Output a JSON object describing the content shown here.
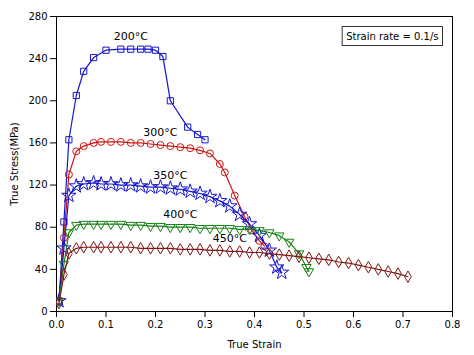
{
  "chart_data": {
    "type": "line",
    "xlabel": "True Strain",
    "ylabel": "True Stress(MPa)",
    "xlim": [
      0,
      0.8
    ],
    "ylim": [
      0,
      280
    ],
    "xticks": [
      {
        "value": 0,
        "label": "0.0"
      },
      0.1,
      0.2,
      0.3,
      0.4,
      0.5,
      0.6,
      0.7,
      0.8
    ],
    "yticks": [
      0,
      40,
      80,
      120,
      160,
      200,
      240,
      280
    ],
    "annotation": "Strain rate = 0.1/s",
    "grid": false,
    "series": [
      {
        "name": "200°C",
        "color": "#1515cc",
        "marker": "square",
        "x": [
          0.005,
          0.015,
          0.025,
          0.04,
          0.055,
          0.075,
          0.1,
          0.13,
          0.15,
          0.17,
          0.185,
          0.2,
          0.215,
          0.23,
          0.265,
          0.285,
          0.3
        ],
        "values": [
          10,
          85,
          163,
          205,
          228,
          241,
          248,
          249,
          249,
          249,
          249,
          248,
          242,
          200,
          175,
          168,
          163
        ]
      },
      {
        "name": "300°C",
        "color": "#cc1515",
        "marker": "circle",
        "x": [
          0.005,
          0.015,
          0.025,
          0.04,
          0.055,
          0.075,
          0.09,
          0.11,
          0.13,
          0.15,
          0.17,
          0.19,
          0.21,
          0.23,
          0.25,
          0.27,
          0.29,
          0.31,
          0.33,
          0.34,
          0.36,
          0.38,
          0.395,
          0.41,
          0.42
        ],
        "values": [
          10,
          70,
          130,
          152,
          157,
          160,
          161,
          161,
          161,
          160,
          160,
          159,
          158,
          157,
          156,
          155,
          153,
          150,
          140,
          132,
          110,
          90,
          77,
          67,
          62
        ]
      },
      {
        "name": "350°C",
        "color": "#1515cc",
        "marker": "star",
        "x": [
          0.005,
          0.015,
          0.025,
          0.04,
          0.055,
          0.075,
          0.09,
          0.11,
          0.13,
          0.15,
          0.17,
          0.19,
          0.21,
          0.23,
          0.25,
          0.27,
          0.29,
          0.31,
          0.33,
          0.35,
          0.37,
          0.39,
          0.41,
          0.43,
          0.445,
          0.455
        ],
        "values": [
          10,
          60,
          110,
          119,
          121,
          122,
          121,
          121,
          120,
          120,
          119,
          118,
          118,
          117,
          116,
          114,
          112,
          109,
          105,
          100,
          92,
          83,
          72,
          58,
          42,
          37
        ]
      },
      {
        "name": "400°C",
        "color": "#158015",
        "marker": "triangle-down",
        "x": [
          0.005,
          0.015,
          0.025,
          0.04,
          0.055,
          0.075,
          0.09,
          0.11,
          0.13,
          0.15,
          0.17,
          0.19,
          0.21,
          0.23,
          0.25,
          0.27,
          0.29,
          0.31,
          0.33,
          0.35,
          0.37,
          0.39,
          0.41,
          0.43,
          0.45,
          0.47,
          0.49,
          0.505,
          0.51
        ],
        "values": [
          10,
          45,
          75,
          82,
          83,
          83,
          83,
          83,
          83,
          82,
          82,
          81,
          81,
          80,
          80,
          80,
          79,
          79,
          79,
          79,
          78,
          78,
          77,
          75,
          72,
          66,
          55,
          42,
          38
        ]
      },
      {
        "name": "450°C",
        "color": "#801515",
        "marker": "diamond",
        "x": [
          0.005,
          0.015,
          0.025,
          0.04,
          0.055,
          0.075,
          0.09,
          0.11,
          0.13,
          0.15,
          0.17,
          0.19,
          0.21,
          0.23,
          0.25,
          0.27,
          0.29,
          0.31,
          0.33,
          0.35,
          0.37,
          0.39,
          0.41,
          0.43,
          0.45,
          0.47,
          0.49,
          0.51,
          0.53,
          0.55,
          0.57,
          0.59,
          0.61,
          0.63,
          0.65,
          0.67,
          0.69,
          0.71
        ],
        "values": [
          8,
          35,
          55,
          60,
          61,
          61,
          61,
          61,
          61,
          61,
          60,
          60,
          60,
          60,
          59,
          59,
          59,
          58,
          58,
          57,
          57,
          56,
          56,
          55,
          54,
          53,
          52,
          51,
          50,
          49,
          47,
          46,
          44,
          42,
          40,
          38,
          36,
          33
        ]
      }
    ]
  }
}
